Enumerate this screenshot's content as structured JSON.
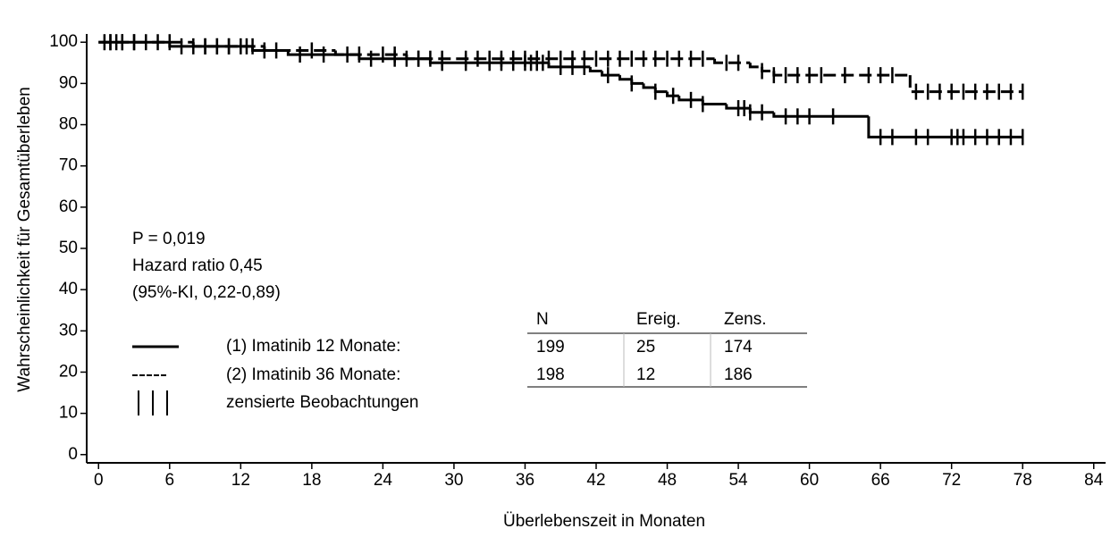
{
  "chart_data": {
    "type": "step",
    "x_label": "Überlebenszeit in Monaten",
    "y_label": "Wahrscheinlichkeit für Gesamtüberleben",
    "xlim": [
      -1,
      85
    ],
    "ylim": [
      -2,
      102
    ],
    "xticks": [
      0,
      6,
      12,
      18,
      24,
      30,
      36,
      42,
      48,
      54,
      60,
      66,
      72,
      78,
      84
    ],
    "yticks": [
      0,
      10,
      20,
      30,
      40,
      50,
      60,
      70,
      80,
      90,
      100
    ],
    "annotations": [
      "P = 0,019",
      "Hazard ratio 0,45",
      "(95%-KI, 0,22-0,89)"
    ],
    "censor_label": "zensierte Beobachtungen",
    "table": {
      "columns": [
        "N",
        "Ereig.",
        "Zens."
      ],
      "rows": [
        [
          199,
          25,
          174
        ],
        [
          198,
          12,
          186
        ]
      ]
    },
    "series": [
      {
        "name": "(1) Imatinib 12 Monate:",
        "color": "#000000",
        "dashed": false,
        "x": [
          0,
          6,
          13,
          16,
          22,
          28,
          38,
          41.5,
          42.5,
          44,
          45,
          46,
          47,
          48,
          49,
          51,
          53,
          55,
          57,
          65,
          78
        ],
        "values": [
          100,
          99,
          98,
          97,
          96,
          95,
          94,
          93,
          92,
          91,
          90,
          89,
          88,
          87,
          86,
          85,
          84,
          83,
          82,
          77,
          77
        ],
        "censor_x": [
          0.5,
          1,
          1.5,
          2,
          3,
          4,
          5,
          7,
          8,
          9,
          10,
          11,
          12.5,
          14,
          17,
          19,
          21,
          23,
          25,
          26,
          27,
          29,
          31,
          33,
          34,
          35,
          36,
          36.5,
          37,
          37.5,
          39,
          40,
          41,
          43,
          45,
          47,
          48.5,
          50,
          51,
          54,
          54.5,
          55,
          56,
          58,
          59,
          60,
          62,
          66,
          67,
          69,
          70,
          72,
          72.5,
          73,
          74,
          75,
          76,
          77,
          78
        ]
      },
      {
        "name": "(2) Imatinib 36 Monate:",
        "color": "#000000",
        "dashed": true,
        "x": [
          0,
          8,
          14,
          20,
          26,
          52,
          55,
          56,
          57,
          68.5,
          78
        ],
        "values": [
          100,
          99,
          98,
          97,
          96,
          95,
          94,
          93,
          92,
          88,
          88
        ],
        "censor_x": [
          1,
          2,
          3,
          6,
          9,
          10,
          11,
          12,
          13,
          15,
          18,
          22,
          24,
          25,
          27,
          28,
          29,
          31,
          32,
          33,
          34,
          35,
          36,
          37,
          38,
          39,
          40,
          41,
          42,
          43,
          44,
          45,
          46,
          47,
          48,
          49,
          50,
          51,
          53,
          54,
          56,
          57,
          58,
          59,
          60,
          61,
          63,
          65,
          66,
          67,
          69,
          70,
          71,
          72,
          73,
          74,
          75,
          76,
          77,
          78
        ]
      }
    ]
  }
}
